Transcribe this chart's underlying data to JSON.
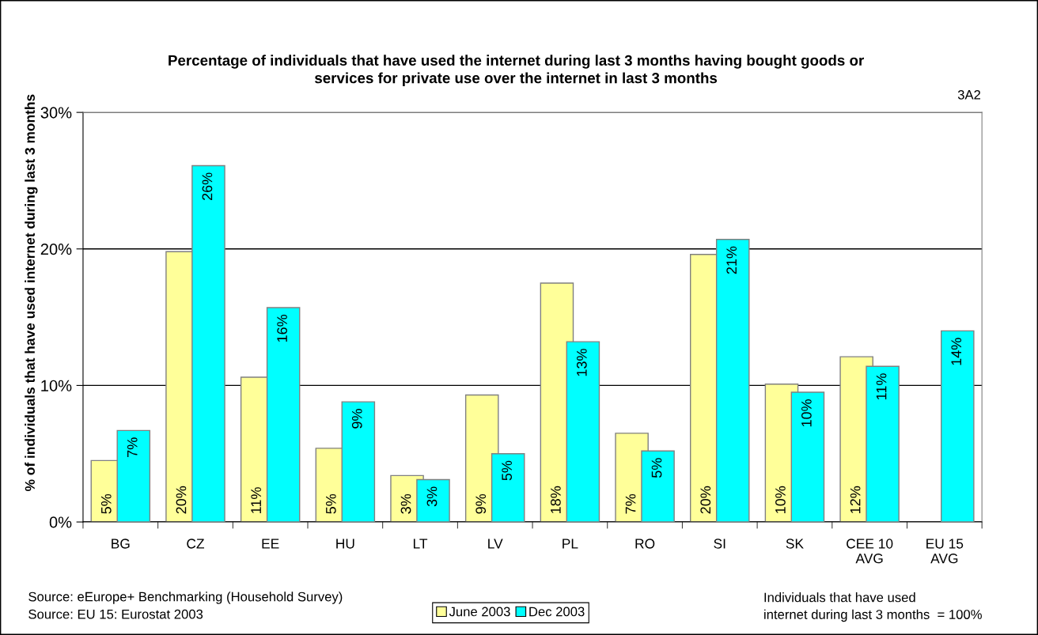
{
  "chart_data": {
    "type": "bar",
    "title": "Percentage of individuals that have used the internet during last 3 months having bought goods or\nservices for private use over the internet in last 3 months",
    "ylabel": "% of individuals that have used internet during last 3 months",
    "categories": [
      "BG",
      "CZ",
      "EE",
      "HU",
      "LT",
      "LV",
      "PL",
      "RO",
      "SI",
      "SK",
      "CEE 10\nAVG",
      "EU 15\nAVG"
    ],
    "series": [
      {
        "name": "June 2003",
        "color": "#ffff99",
        "values": [
          4.5,
          19.8,
          10.6,
          5.4,
          3.4,
          9.3,
          17.5,
          6.5,
          19.6,
          10.1,
          12.1,
          null
        ],
        "value_labels": [
          "5%",
          "20%",
          "11%",
          "5%",
          "3%",
          "9%",
          "18%",
          "7%",
          "20%",
          "10%",
          "12%",
          null
        ]
      },
      {
        "name": "Dec 2003",
        "color": "#00ffff",
        "values": [
          6.7,
          26.1,
          15.7,
          8.8,
          3.1,
          5.0,
          13.2,
          5.2,
          20.7,
          9.5,
          11.4,
          14.0
        ],
        "value_labels": [
          "7%",
          "26%",
          "16%",
          "9%",
          "3%",
          "5%",
          "13%",
          "5%",
          "21%",
          "10%",
          "11%",
          "14%"
        ]
      }
    ],
    "ylim": [
      0,
      30
    ],
    "yticks": [
      {
        "value": 0,
        "label": "0%"
      },
      {
        "value": 10,
        "label": "10%"
      },
      {
        "value": 20,
        "label": "20%"
      },
      {
        "value": 30,
        "label": "30%"
      }
    ],
    "grid": "y",
    "legend": "bottom",
    "annotations": [
      "3A2",
      "Source: eEurope+ Benchmarking (Household Survey)",
      "Source: EU 15: Eurostat 2003",
      "Individuals that have used\ninternet during last 3 months  = 100%"
    ]
  }
}
